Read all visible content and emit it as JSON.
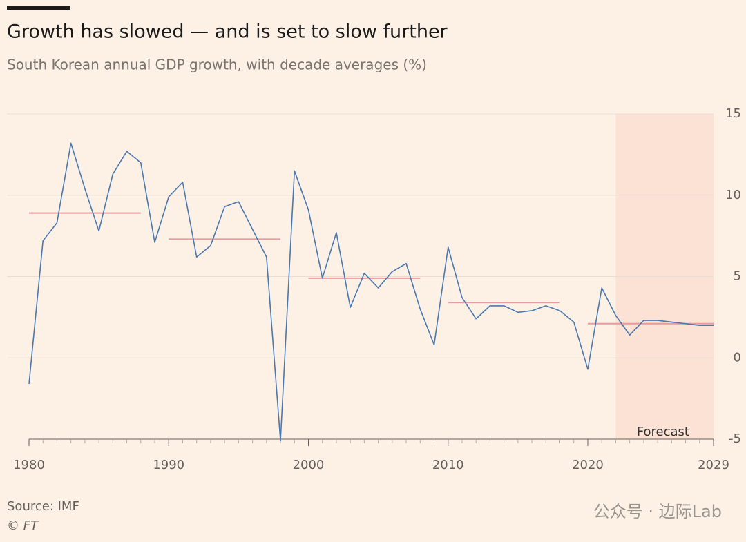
{
  "chart_data": {
    "type": "line",
    "title": "Growth has slowed — and is set to slow further",
    "subtitle": "South Korean annual GDP growth, with decade averages (%)",
    "x": [
      1980,
      1981,
      1982,
      1983,
      1984,
      1985,
      1986,
      1987,
      1988,
      1989,
      1990,
      1991,
      1992,
      1993,
      1994,
      1995,
      1996,
      1997,
      1998,
      1999,
      2000,
      2001,
      2002,
      2003,
      2004,
      2005,
      2006,
      2007,
      2008,
      2009,
      2010,
      2011,
      2012,
      2013,
      2014,
      2015,
      2016,
      2017,
      2018,
      2019,
      2020,
      2021,
      2022,
      2023,
      2024,
      2025,
      2026,
      2027,
      2028,
      2029
    ],
    "values": [
      -1.6,
      7.2,
      8.3,
      13.2,
      10.4,
      7.8,
      11.3,
      12.7,
      12.0,
      7.1,
      9.9,
      10.8,
      6.2,
      6.9,
      9.3,
      9.6,
      7.9,
      6.2,
      -5.1,
      11.5,
      9.1,
      4.9,
      7.7,
      3.1,
      5.2,
      4.3,
      5.3,
      5.8,
      3.0,
      0.8,
      6.8,
      3.7,
      2.4,
      3.2,
      3.2,
      2.8,
      2.9,
      3.2,
      2.9,
      2.2,
      -0.7,
      4.3,
      2.6,
      1.4,
      2.3,
      2.3,
      2.2,
      2.1,
      2.0,
      2.0
    ],
    "color": "#4a78b0",
    "decade_averages": [
      {
        "start": 1980,
        "end": 1988,
        "value": 8.9
      },
      {
        "start": 1990,
        "end": 1998,
        "value": 7.3
      },
      {
        "start": 2000,
        "end": 2008,
        "value": 4.9
      },
      {
        "start": 2010,
        "end": 2018,
        "value": 3.4
      },
      {
        "start": 2020,
        "end": 2029,
        "value": 2.1
      }
    ],
    "average_color": "#e79a9c",
    "forecast": {
      "start": 2022,
      "end": 2029,
      "label": "Forecast",
      "color": "#fbe2d4"
    },
    "xlim": [
      1980,
      2029
    ],
    "xticks": [
      1980,
      1990,
      2000,
      2010,
      2020,
      2029
    ],
    "ylim": [
      -5,
      15
    ],
    "yticks": [
      -5,
      0,
      5,
      10,
      15
    ],
    "grid": true,
    "source": "Source: IMF",
    "credit": "© FT",
    "watermark": "公众号 · 边际Lab"
  }
}
